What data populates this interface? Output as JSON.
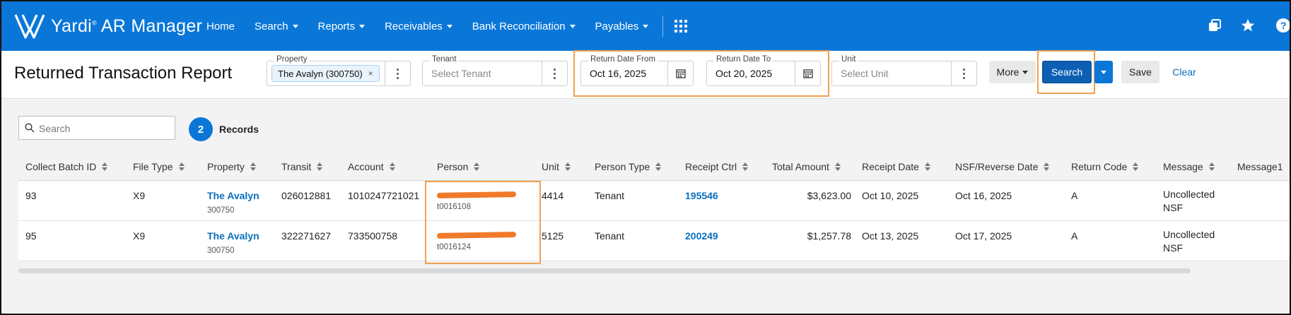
{
  "app": {
    "brand": "Yardi",
    "product": "AR Manager",
    "logo_icon": "yardi-logo-icon"
  },
  "nav": {
    "items": [
      {
        "label": "Home",
        "dropdown": false
      },
      {
        "label": "Search",
        "dropdown": true
      },
      {
        "label": "Reports",
        "dropdown": true
      },
      {
        "label": "Receivables",
        "dropdown": true
      },
      {
        "label": "Bank Reconciliation",
        "dropdown": true
      },
      {
        "label": "Payables",
        "dropdown": true
      }
    ],
    "right_icons": [
      "windows-icon",
      "star-icon",
      "help-icon"
    ]
  },
  "page": {
    "title": "Returned Transaction Report"
  },
  "filters": {
    "property": {
      "label": "Property",
      "chip": "The Avalyn (300750)",
      "chip_remove": "×"
    },
    "tenant": {
      "label": "Tenant",
      "placeholder": "Select Tenant"
    },
    "return_date_from": {
      "label": "Return Date From",
      "value": "Oct 16, 2025"
    },
    "return_date_to": {
      "label": "Return Date To",
      "value": "Oct 20, 2025"
    },
    "unit": {
      "label": "Unit",
      "placeholder": "Select Unit"
    }
  },
  "actions": {
    "more": "More",
    "search": "Search",
    "save": "Save",
    "clear": "Clear"
  },
  "grid": {
    "search_placeholder": "Search",
    "record_count": "2",
    "records_label": "Records",
    "columns": [
      "Collect Batch ID",
      "File Type",
      "Property",
      "Transit",
      "Account",
      "Person",
      "Unit",
      "Person Type",
      "Receipt Ctrl",
      "Total Amount",
      "Receipt Date",
      "NSF/Reverse Date",
      "Return Code",
      "Message",
      "Message1"
    ],
    "rows": [
      {
        "batch_id": "93",
        "file_type": "X9",
        "property": "The Avalyn",
        "property_code": "300750",
        "transit": "026012881",
        "account": "1010247721021",
        "person_code": "t0016108",
        "unit": "4414",
        "person_type": "Tenant",
        "receipt_ctrl": "195546",
        "total_amount": "$3,623.00",
        "receipt_date": "Oct 10, 2025",
        "nsf_date": "Oct 16, 2025",
        "return_code": "A",
        "message_line1": "Uncollected",
        "message_line2": "NSF"
      },
      {
        "batch_id": "95",
        "file_type": "X9",
        "property": "The Avalyn",
        "property_code": "300750",
        "transit": "322271627",
        "account": "733500758",
        "person_code": "t0016124",
        "unit": "5125",
        "person_type": "Tenant",
        "receipt_ctrl": "200249",
        "total_amount": "$1,257.78",
        "receipt_date": "Oct 13, 2025",
        "nsf_date": "Oct 17, 2025",
        "return_code": "A",
        "message_line1": "Uncollected",
        "message_line2": "NSF"
      }
    ]
  },
  "colors": {
    "topbar": "#0a77d8",
    "link": "#0a6ebd",
    "highlight": "#f0a050",
    "redaction": "#f07a2a"
  }
}
